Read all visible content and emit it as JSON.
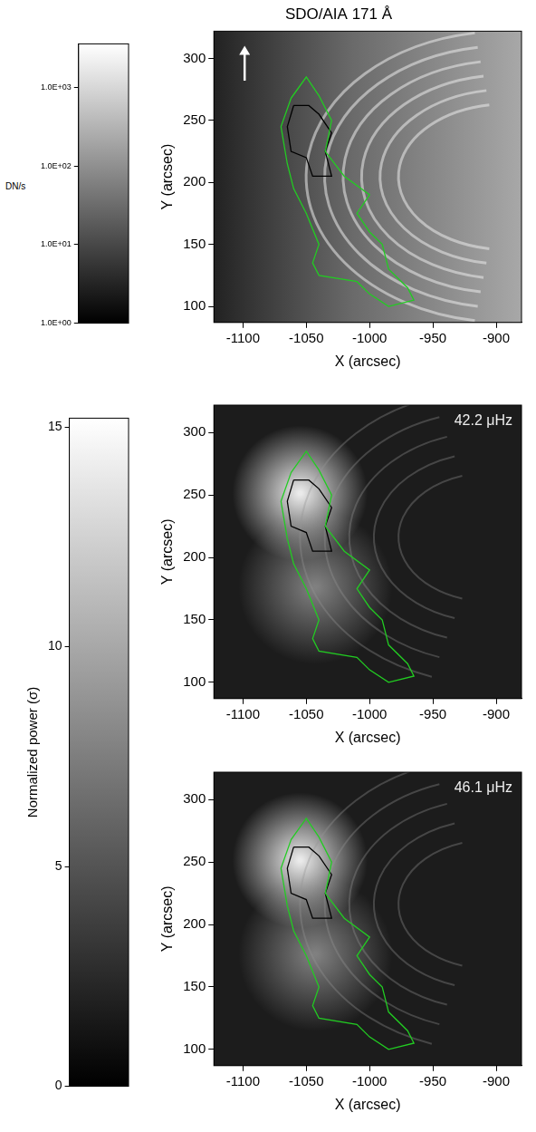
{
  "chart_data": [
    {
      "type": "scatter",
      "title": "SDO/AIA 171 Å",
      "xlabel": "X (arcsec)",
      "ylabel": "Y (arcsec)",
      "xlim": [
        -1123,
        -880
      ],
      "ylim": [
        87,
        322
      ],
      "xticks": [
        -1100,
        -1050,
        -1000,
        -950,
        -900
      ],
      "yticks": [
        100,
        150,
        200,
        250,
        300
      ],
      "colorbar": 0
    },
    {
      "type": "scatter",
      "annotation": "42.2 μHz",
      "xlabel": "X (arcsec)",
      "ylabel": "Y (arcsec)",
      "xlim": [
        -1123,
        -880
      ],
      "ylim": [
        87,
        322
      ],
      "xticks": [
        -1100,
        -1050,
        -1000,
        -950,
        -900
      ],
      "yticks": [
        100,
        150,
        200,
        250,
        300
      ],
      "colorbar": 1
    },
    {
      "type": "scatter",
      "annotation": "46.1 μHz",
      "xlabel": "X (arcsec)",
      "ylabel": "Y (arcsec)",
      "xlim": [
        -1123,
        -880
      ],
      "ylim": [
        87,
        322
      ],
      "xticks": [
        -1100,
        -1050,
        -1000,
        -950,
        -900
      ],
      "yticks": [
        100,
        150,
        200,
        250,
        300
      ],
      "colorbar": 1
    }
  ],
  "contours": [
    {
      "color": "#22cc22",
      "x": [
        -1062,
        -1050,
        -1040,
        -1030,
        -1035,
        -1020,
        -1000,
        -1010,
        -1000,
        -990,
        -985,
        -970,
        -965,
        -985,
        -1000,
        -1010,
        -1040,
        -1045,
        -1040,
        -1050,
        -1060,
        -1065,
        -1070,
        -1062
      ],
      "y": [
        268,
        285,
        270,
        250,
        225,
        205,
        190,
        175,
        160,
        150,
        130,
        115,
        105,
        100,
        110,
        120,
        125,
        135,
        150,
        175,
        195,
        215,
        245,
        268
      ]
    },
    {
      "color": "#000000",
      "x": [
        -1060,
        -1048,
        -1040,
        -1030,
        -1035,
        -1030,
        -1045,
        -1050,
        -1062,
        -1065,
        -1060
      ],
      "y": [
        262,
        262,
        255,
        240,
        225,
        205,
        205,
        220,
        225,
        245,
        262
      ]
    }
  ],
  "colorbars": [
    {
      "label": "DN/s",
      "log": true,
      "ylim": [
        1,
        3600
      ],
      "yticks": [
        {
          "value": 1,
          "label": "1.0E+00"
        },
        {
          "value": 10,
          "label": "1.0E+01"
        },
        {
          "value": 100,
          "label": "1.0E+02"
        },
        {
          "value": 1000,
          "label": "1.0E+03"
        }
      ]
    },
    {
      "label": "Normalized power (σ)",
      "log": false,
      "ylim": [
        0,
        15.2
      ],
      "yticks": [
        0,
        5,
        10,
        15
      ]
    }
  ]
}
